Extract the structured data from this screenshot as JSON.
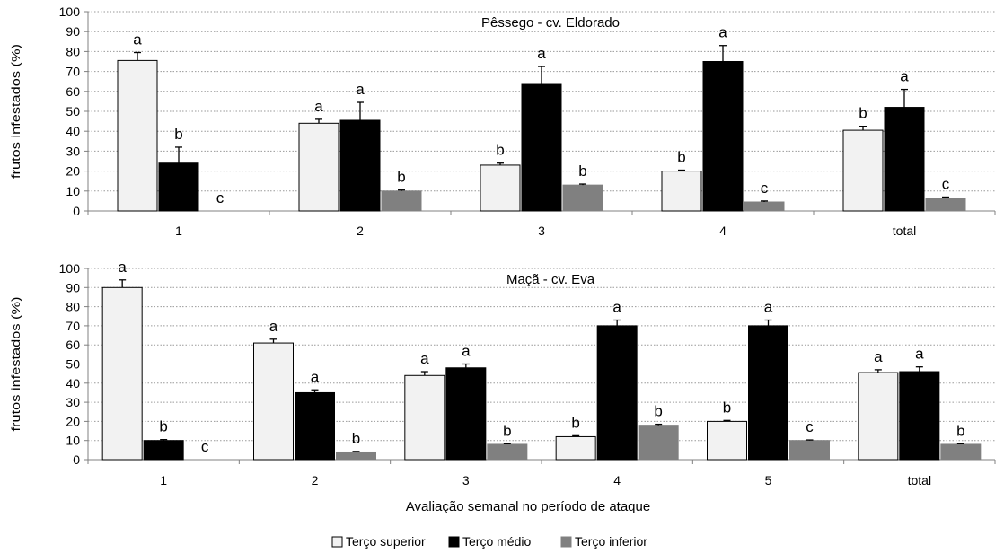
{
  "figure": {
    "xlabel": "Avaliação semanal no período de ataque",
    "legend": [
      "Terço superior",
      "Terço médio",
      "Terço inferior"
    ],
    "series_colors": [
      "#f2f2f2",
      "#000000",
      "#808080"
    ]
  },
  "chart_data": [
    {
      "type": "bar",
      "title": "Pêssego - cv. Eldorado",
      "ylabel": "frutos infestados (%)",
      "ylim": [
        0,
        100
      ],
      "yticks": [
        0,
        10,
        20,
        30,
        40,
        50,
        60,
        70,
        80,
        90,
        100
      ],
      "grid": "horizontal dotted",
      "categories": [
        "1",
        "2",
        "3",
        "4",
        "total"
      ],
      "series": [
        {
          "name": "Terço superior",
          "values": [
            75.5,
            44,
            23,
            20,
            40.5
          ],
          "errors": [
            4,
            2,
            1,
            0.5,
            2
          ],
          "letters": [
            "a",
            "a",
            "b",
            "b",
            "b"
          ]
        },
        {
          "name": "Terço médio",
          "values": [
            24,
            45.5,
            63.5,
            75,
            52
          ],
          "errors": [
            8,
            9,
            9,
            8,
            9
          ],
          "letters": [
            "b",
            "a",
            "a",
            "a",
            "a"
          ]
        },
        {
          "name": "Terço inferior",
          "values": [
            0,
            10,
            13,
            4.5,
            6.5
          ],
          "errors": [
            0,
            0.5,
            0.5,
            0.5,
            0.5
          ],
          "letters": [
            "c",
            "b",
            "b",
            "c",
            "c"
          ]
        }
      ]
    },
    {
      "type": "bar",
      "title": "Maçã - cv. Eva",
      "ylabel": "frutos infestados (%)",
      "ylim": [
        0,
        100
      ],
      "yticks": [
        0,
        10,
        20,
        30,
        40,
        50,
        60,
        70,
        80,
        90,
        100
      ],
      "grid": "horizontal dotted",
      "categories": [
        "1",
        "2",
        "3",
        "4",
        "5",
        "total"
      ],
      "series": [
        {
          "name": "Terço superior",
          "values": [
            90,
            61,
            44,
            12,
            20,
            45.5
          ],
          "errors": [
            4,
            2,
            2,
            0.5,
            0.5,
            1.5
          ],
          "letters": [
            "a",
            "a",
            "a",
            "b",
            "b",
            "a"
          ]
        },
        {
          "name": "Terço médio",
          "values": [
            10,
            35,
            48,
            70,
            70,
            46
          ],
          "errors": [
            0.5,
            1.5,
            2,
            3,
            3,
            2.5
          ],
          "letters": [
            "b",
            "a",
            "a",
            "a",
            "a",
            "a"
          ]
        },
        {
          "name": "Terço inferior",
          "values": [
            0,
            4,
            8,
            18,
            10,
            8
          ],
          "errors": [
            0,
            0.3,
            0.3,
            0.5,
            0.3,
            0.3
          ],
          "letters": [
            "c",
            "b",
            "b",
            "b",
            "c",
            "b"
          ]
        }
      ]
    }
  ]
}
